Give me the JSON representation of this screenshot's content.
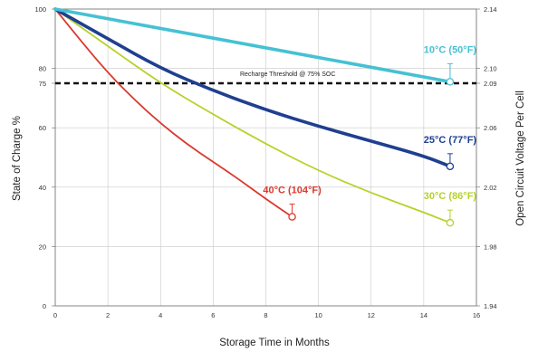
{
  "chart_data": {
    "type": "line",
    "title": "",
    "xlabel": "Storage Time in Months",
    "ylabel": "State of Charge %",
    "y2label": "Open Circuit Voltage Per Cell",
    "xlim": [
      0,
      16
    ],
    "ylim": [
      0,
      100
    ],
    "y2lim": [
      1.94,
      2.14
    ],
    "x_ticks": [
      0,
      2,
      4,
      6,
      8,
      10,
      12,
      14,
      16
    ],
    "y_ticks": [
      0,
      20,
      40,
      60,
      75,
      80,
      100
    ],
    "y2_ticks": [
      "1.94",
      "1.98",
      "2.02",
      "2.06",
      "2.09",
      "2.10",
      "2.14"
    ],
    "grid": true,
    "threshold": {
      "y": 75,
      "label": "Recharge Threshold @ 75% SOC",
      "color": "#111111"
    },
    "series": [
      {
        "name": "10°C (50°F)",
        "color": "#45c1d3",
        "x": [
          0,
          15
        ],
        "y": [
          100,
          75.5
        ]
      },
      {
        "name": "25°C (77°F)",
        "color": "#1f3f8f",
        "x": [
          0,
          2,
          4,
          6,
          8,
          10,
          12,
          14,
          15
        ],
        "y": [
          100,
          90,
          80,
          72.5,
          66,
          60.5,
          55.5,
          50.5,
          47
        ]
      },
      {
        "name": "30°C (86°F)",
        "color": "#b6d22b",
        "x": [
          0,
          2,
          4,
          6,
          8,
          10,
          12,
          14,
          15
        ],
        "y": [
          100,
          87.5,
          75,
          64.5,
          54.5,
          45.5,
          38,
          31.5,
          28
        ]
      },
      {
        "name": "40°C (104°F)",
        "color": "#d93a2e",
        "x": [
          0,
          1,
          2,
          3,
          4,
          5,
          6,
          7,
          8,
          9
        ],
        "y": [
          100,
          89,
          78.5,
          69.5,
          61.5,
          54.5,
          48.5,
          42.5,
          36,
          30
        ]
      }
    ]
  }
}
